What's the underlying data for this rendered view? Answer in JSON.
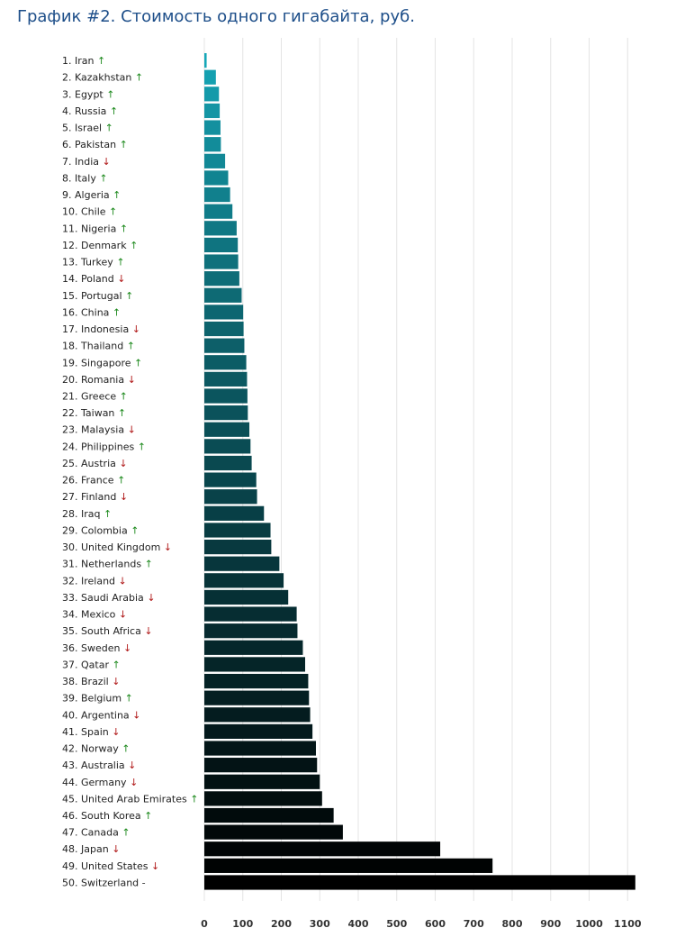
{
  "page": {
    "title": "График #2. Стоимость одного гигабайта, руб."
  },
  "colors": {
    "bar_start": "#16a7b8",
    "bar_end": "#000000",
    "grid": "#e4e4e4",
    "up_arrow": "#1e8a1e",
    "down_arrow": "#b01818"
  },
  "chart_data": {
    "type": "bar",
    "orientation": "horizontal",
    "title": "График #2. Стоимость одного гигабайта, руб.",
    "xlabel": "",
    "ylabel": "",
    "xlim": [
      0,
      1130
    ],
    "xticks": [
      0,
      100,
      200,
      300,
      400,
      500,
      600,
      700,
      800,
      900,
      1000,
      1100
    ],
    "grid": true,
    "categories": [
      {
        "rank": "1.",
        "name": "Iran",
        "trend": "↑"
      },
      {
        "rank": "2.",
        "name": "Kazakhstan",
        "trend": "↑"
      },
      {
        "rank": "3.",
        "name": "Egypt",
        "trend": "↑"
      },
      {
        "rank": "4.",
        "name": "Russia",
        "trend": "↑"
      },
      {
        "rank": "5.",
        "name": "Israel",
        "trend": "↑"
      },
      {
        "rank": "6.",
        "name": "Pakistan",
        "trend": "↑"
      },
      {
        "rank": "7.",
        "name": "India",
        "trend": "↓"
      },
      {
        "rank": "8.",
        "name": "Italy",
        "trend": "↑"
      },
      {
        "rank": "9.",
        "name": "Algeria",
        "trend": "↑"
      },
      {
        "rank": "10.",
        "name": "Chile",
        "trend": "↑"
      },
      {
        "rank": "11.",
        "name": "Nigeria",
        "trend": "↑"
      },
      {
        "rank": "12.",
        "name": "Denmark",
        "trend": "↑"
      },
      {
        "rank": "13.",
        "name": "Turkey",
        "trend": "↑"
      },
      {
        "rank": "14.",
        "name": "Poland",
        "trend": "↓"
      },
      {
        "rank": "15.",
        "name": "Portugal",
        "trend": "↑"
      },
      {
        "rank": "16.",
        "name": "China",
        "trend": "↑"
      },
      {
        "rank": "17.",
        "name": "Indonesia",
        "trend": "↓"
      },
      {
        "rank": "18.",
        "name": "Thailand",
        "trend": "↑"
      },
      {
        "rank": "19.",
        "name": "Singapore",
        "trend": "↑"
      },
      {
        "rank": "20.",
        "name": "Romania",
        "trend": "↓"
      },
      {
        "rank": "21.",
        "name": "Greece",
        "trend": "↑"
      },
      {
        "rank": "22.",
        "name": "Taiwan",
        "trend": "↑"
      },
      {
        "rank": "23.",
        "name": "Malaysia",
        "trend": "↓"
      },
      {
        "rank": "24.",
        "name": "Philippines",
        "trend": "↑"
      },
      {
        "rank": "25.",
        "name": "Austria",
        "trend": "↓"
      },
      {
        "rank": "26.",
        "name": "France",
        "trend": "↑"
      },
      {
        "rank": "27.",
        "name": "Finland",
        "trend": "↓"
      },
      {
        "rank": "28.",
        "name": "Iraq",
        "trend": "↑"
      },
      {
        "rank": "29.",
        "name": "Colombia",
        "trend": "↑"
      },
      {
        "rank": "30.",
        "name": "United Kingdom",
        "trend": "↓"
      },
      {
        "rank": "31.",
        "name": "Netherlands",
        "trend": "↑"
      },
      {
        "rank": "32.",
        "name": "Ireland",
        "trend": "↓"
      },
      {
        "rank": "33.",
        "name": "Saudi Arabia",
        "trend": "↓"
      },
      {
        "rank": "34.",
        "name": "Mexico",
        "trend": "↓"
      },
      {
        "rank": "35.",
        "name": "South Africa",
        "trend": "↓"
      },
      {
        "rank": "36.",
        "name": "Sweden",
        "trend": "↓"
      },
      {
        "rank": "37.",
        "name": "Qatar",
        "trend": "↑"
      },
      {
        "rank": "38.",
        "name": "Brazil",
        "trend": "↓"
      },
      {
        "rank": "39.",
        "name": "Belgium",
        "trend": "↑"
      },
      {
        "rank": "40.",
        "name": "Argentina",
        "trend": "↓"
      },
      {
        "rank": "41.",
        "name": "Spain",
        "trend": "↓"
      },
      {
        "rank": "42.",
        "name": "Norway",
        "trend": "↑"
      },
      {
        "rank": "43.",
        "name": "Australia",
        "trend": "↓"
      },
      {
        "rank": "44.",
        "name": "Germany",
        "trend": "↓"
      },
      {
        "rank": "45.",
        "name": "United Arab Emirates",
        "trend": "↑"
      },
      {
        "rank": "46.",
        "name": "South Korea",
        "trend": "↑"
      },
      {
        "rank": "47.",
        "name": "Canada",
        "trend": "↑"
      },
      {
        "rank": "48.",
        "name": "Japan",
        "trend": "↓"
      },
      {
        "rank": "49.",
        "name": "United States",
        "trend": "↓"
      },
      {
        "rank": "50.",
        "name": "Switzerland",
        "trend": "-"
      }
    ],
    "values": [
      6,
      30,
      38,
      40,
      42,
      43,
      54,
      62,
      67,
      73,
      84,
      87,
      88,
      91,
      97,
      101,
      102,
      104,
      109,
      111,
      112,
      113,
      117,
      120,
      123,
      135,
      137,
      155,
      172,
      174,
      195,
      206,
      218,
      240,
      242,
      256,
      262,
      270,
      272,
      275,
      281,
      290,
      293,
      300,
      306,
      336,
      360,
      613,
      749,
      1120
    ]
  }
}
